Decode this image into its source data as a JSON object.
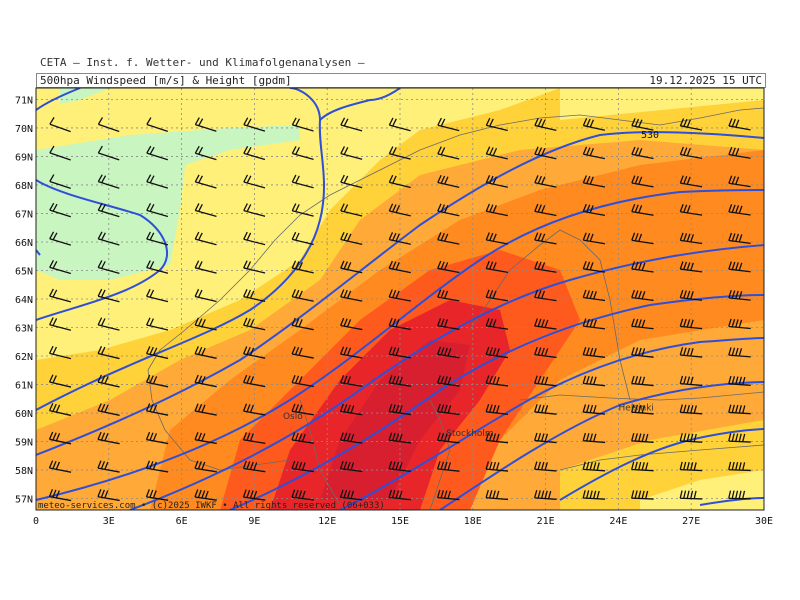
{
  "header": {
    "provider": "CETA – Inst. f. Wetter- und Klimafolgenanalysen –",
    "product": "500hpa Windspeed [m/s] & Height [gpdm]",
    "valid_time": "19.12.2025 15 UTC"
  },
  "map": {
    "lon_range": [
      0,
      30
    ],
    "lat_range": [
      56.6,
      71.4
    ],
    "lat_ticks": [
      "71N",
      "70N",
      "69N",
      "68N",
      "67N",
      "66N",
      "65N",
      "64N",
      "63N",
      "62N",
      "61N",
      "60N",
      "59N",
      "58N",
      "57N"
    ],
    "lon_ticks": [
      "0",
      "3E",
      "6E",
      "9E",
      "12E",
      "15E",
      "18E",
      "21E",
      "24E",
      "27E",
      "30E"
    ],
    "contour_label": "530",
    "cities": [
      {
        "name": "Oslo",
        "lon": 10.75,
        "lat": 59.9
      },
      {
        "name": "Stockholm",
        "lon": 18.05,
        "lat": 59.3
      },
      {
        "name": "Helsinki",
        "lon": 24.9,
        "lat": 60.2
      }
    ],
    "colors": {
      "calm": "#c8f5c0",
      "light": "#fff07a",
      "yellow": "#ffd23a",
      "orange_light": "#ffa938",
      "orange": "#ff8a20",
      "red_orange": "#ff5a1e",
      "red": "#e8262a",
      "contour": "#2f4fd8",
      "grid": "#8a8a8a"
    }
  },
  "footer": {
    "credit": "meteo-services.com • (c)2025 IWKF • All rights reserved (06+033)"
  }
}
